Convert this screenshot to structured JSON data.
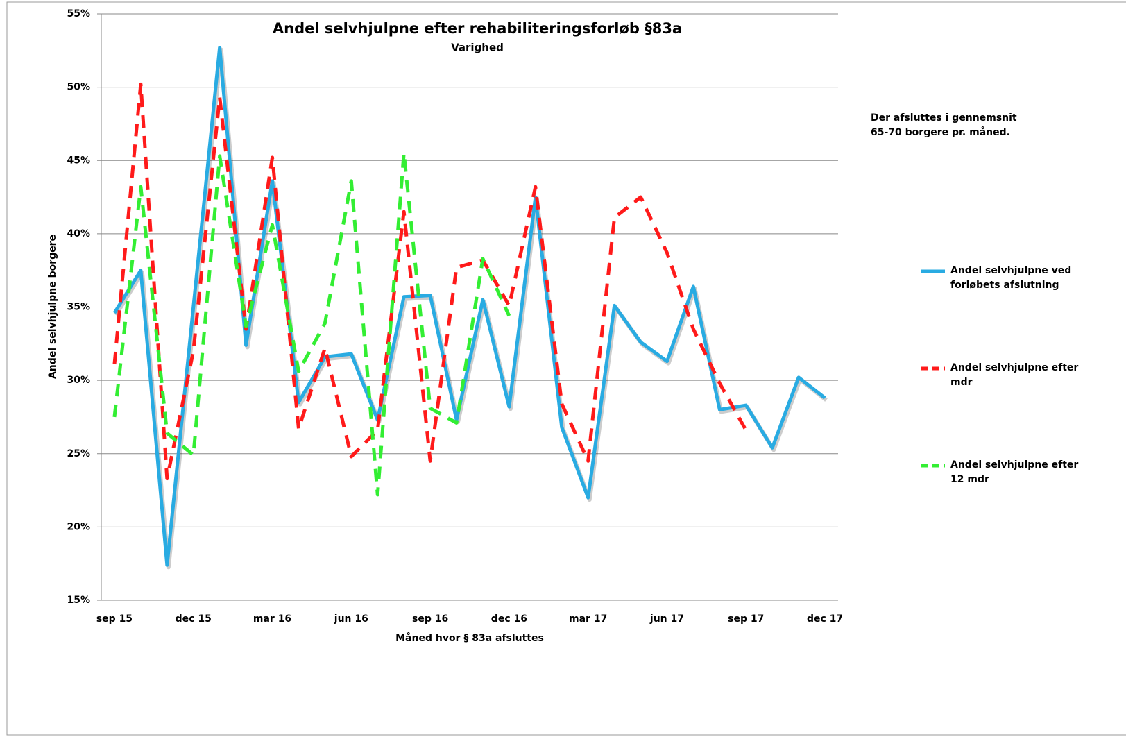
{
  "chart_data": {
    "type": "line",
    "title": "Andel selvhjulpne efter rehabiliteringsforløb §83a",
    "subtitle": "Varighed",
    "x_label": "Måned hvor § 83a afsluttes",
    "y_label": "Andel selvhjulpne borgere",
    "note": "Der afsluttes i gennemsnit 65-70 borgere pr. måned.",
    "categories": [
      "sep 15",
      null,
      null,
      "dec 15",
      null,
      null,
      "mar 16",
      null,
      null,
      "jun 16",
      null,
      null,
      "sep 16",
      null,
      null,
      "dec 16",
      null,
      null,
      "mar 17",
      null,
      null,
      "jun 17",
      null,
      null,
      "sep 17",
      null,
      null,
      "dec 17"
    ],
    "ylim": [
      15,
      55
    ],
    "yticks": [
      {
        "value": 15,
        "label": "15%"
      },
      {
        "value": 20,
        "label": "20%"
      },
      {
        "value": 25,
        "label": "25%"
      },
      {
        "value": 30,
        "label": "30%"
      },
      {
        "value": 35,
        "label": "35%"
      },
      {
        "value": 40,
        "label": "40%"
      },
      {
        "value": 45,
        "label": "45%"
      },
      {
        "value": 50,
        "label": "50%"
      },
      {
        "value": 55,
        "label": "55%"
      }
    ],
    "grid": true,
    "series": [
      {
        "name": "Andel selvhjulpne ved forløbets afslutning",
        "color": "#29abe2",
        "dashed": false,
        "values": [
          34.6,
          37.5,
          17.4,
          35,
          52.7,
          32.4,
          43.6,
          28.5,
          31.6,
          31.8,
          27.3,
          35.7,
          35.8,
          27.3,
          35.5,
          28.2,
          42.5,
          26.8,
          22.0,
          35.1,
          32.6,
          31.3,
          36.4,
          28.0,
          28.3,
          25.4,
          30.2,
          28.8
        ]
      },
      {
        "name": "Andel selvhjulpne efter mdr",
        "color": "#ff1a1a",
        "dashed": true,
        "values": [
          31.1,
          50.2,
          23.3,
          32,
          49.3,
          33.5,
          45.2,
          26.7,
          32.2,
          24.8,
          26.6,
          41.5,
          24.5,
          37.7,
          38.2,
          35.1,
          43.2,
          28.4,
          24.5,
          41.1,
          42.5,
          38.7,
          33.5,
          29.8,
          26.6,
          null,
          null,
          null
        ]
      },
      {
        "name": "Andel selvhjulpne efter 12 mdr",
        "color": "#33ee33",
        "dashed": true,
        "values": [
          27.5,
          43.2,
          26.4,
          24.9,
          45.3,
          33.7,
          40.6,
          30.6,
          33.9,
          43.6,
          22.2,
          45.5,
          28.1,
          27.1,
          38.3,
          34.4,
          null,
          null,
          null,
          null,
          null,
          null,
          null,
          null,
          null,
          null,
          null,
          null
        ]
      }
    ]
  }
}
